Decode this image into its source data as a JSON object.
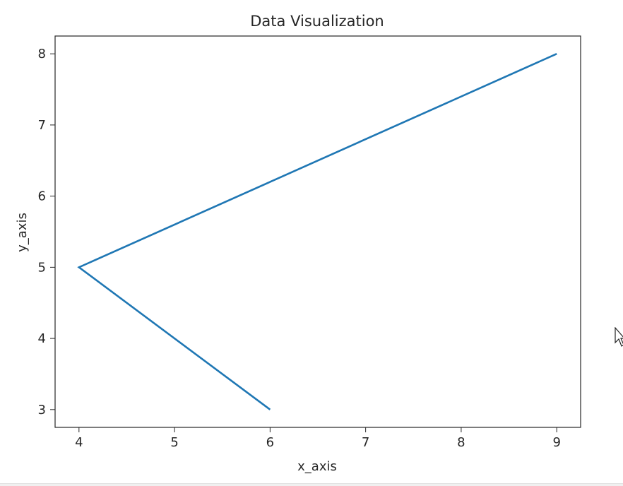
{
  "chart_data": {
    "type": "line",
    "title": "Data Visualization",
    "xlabel": "x_axis",
    "ylabel": "y_axis",
    "series": [
      {
        "x": [
          6,
          4,
          9
        ],
        "y": [
          3,
          5,
          8
        ],
        "color": "#1f77b4"
      }
    ],
    "xlim": [
      3.75,
      9.25
    ],
    "ylim": [
      2.75,
      8.25
    ],
    "xticks": [
      4,
      5,
      6,
      7,
      8,
      9
    ],
    "yticks": [
      3,
      4,
      5,
      6,
      7,
      8
    ],
    "grid": false,
    "legend": false
  },
  "icons": {
    "cursor": "mouse-pointer-icon"
  }
}
